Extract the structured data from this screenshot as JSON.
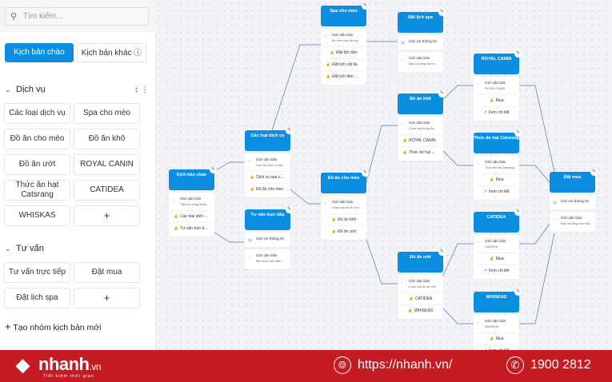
{
  "sidebar": {
    "search_placeholder": "Tìm kiếm...",
    "tabs": {
      "active": "Kịch bản chào",
      "other": "Kịch bản khác"
    },
    "groups": [
      {
        "title": "Dịch vụ",
        "items": [
          "Các loại dịch vụ",
          "Spa cho mèo",
          "Đồ ăn cho mèo",
          "Đồ ăn khô",
          "Đồ ăn ướt",
          "ROYAL CANIN",
          "Thức ăn hạt Catsrang",
          "CATIDEA",
          "WHISKAS",
          "+"
        ]
      },
      {
        "title": "Tư vấn",
        "items": [
          "Tư vấn trực tiếp",
          "Đặt mua",
          "Đặt lịch spa",
          "+"
        ]
      }
    ],
    "new_group": "Tạo nhóm kịch bản mới"
  },
  "nodes": [
    {
      "id": "kbc",
      "title": "Kịch bản chào",
      "blocks": [
        {
          "type": "msg",
          "text": "Gửi văn bản",
          "sub": "Tiếp thu cùng Hạnh..."
        },
        {
          "type": "btn",
          "text": "Các loại dịch ..."
        },
        {
          "type": "btn",
          "text": "Tư vấn trực ti..."
        }
      ]
    },
    {
      "id": "cldv",
      "title": "Các loại dịch vụ",
      "blocks": [
        {
          "type": "msg",
          "text": "Gửi văn bản",
          "sub": "Các loại dịch vụ mà..."
        },
        {
          "type": "btn",
          "text": "Dịch vụ spa c..."
        },
        {
          "type": "btn",
          "text": "Đồ ăn cho mèo"
        }
      ]
    },
    {
      "id": "tvtt",
      "title": "Tư vấn trực tiếp",
      "cards": [
        {
          "type": "info",
          "text": "Gửi xin thông tin"
        },
        {
          "type": "msg",
          "text": "Gửi văn bản",
          "sub": "Bên mình đã nhận..."
        }
      ]
    },
    {
      "id": "spa",
      "title": "Spa cho mèo",
      "blocks": [
        {
          "type": "msg",
          "text": "Gửi văn bản",
          "sub": "Bé mèo của các bạ..."
        },
        {
          "type": "btn",
          "text": "Đặt lịch tắm",
          "center": true
        },
        {
          "type": "btn",
          "text": "Đặt lịch cắt tỉa"
        },
        {
          "type": "btn",
          "text": "Đặt lịch tắm ..."
        }
      ]
    },
    {
      "id": "dls",
      "title": "Đặt lịch spa",
      "cards": [
        {
          "type": "info",
          "text": "Gửi xin thông tin"
        },
        {
          "type": "msg",
          "text": "Gửi văn bản",
          "sub": "Bạn vui lòng chờ m..."
        }
      ]
    },
    {
      "id": "dacm",
      "title": "Đồ ăn cho mèo",
      "blocks": [
        {
          "type": "msg",
          "text": "Gửi văn bản",
          "sub": "Chọn loại đồ ăn cho..."
        },
        {
          "type": "btn",
          "text": "Đồ ăn khô",
          "center": true
        },
        {
          "type": "btn",
          "text": "Đồ ăn ướt",
          "center": true
        }
      ]
    },
    {
      "id": "dak",
      "title": "Đồ ăn khô",
      "blocks": [
        {
          "type": "msg",
          "text": "Gửi văn bản",
          "sub": "Chọn loại trong đồ..."
        },
        {
          "type": "btn",
          "text": "ROYAL CANIN"
        },
        {
          "type": "btn",
          "text": "Thức ăn hạt ..."
        }
      ]
    },
    {
      "id": "dau",
      "title": "Đồ ăn ướt",
      "blocks": [
        {
          "type": "msg",
          "text": "Gửi văn bản",
          "sub": "Chọn loại đồ ăn ướt."
        },
        {
          "type": "btn",
          "text": "CATIDEA",
          "center": true
        },
        {
          "type": "btn",
          "text": "WHISKAS",
          "center": true
        }
      ]
    },
    {
      "id": "rc",
      "title": "ROYAL CANIN",
      "blocks": [
        {
          "type": "msg",
          "text": "Gửi văn bản",
          "sub": "ROYAL CANIN"
        },
        {
          "type": "btn",
          "text": "Mua",
          "center": true
        },
        {
          "type": "link",
          "text": "Xem chi tiết",
          "center": true
        }
      ]
    },
    {
      "id": "tah",
      "title": "Thức ăn hạt Catsrang",
      "blocks": [
        {
          "type": "msg",
          "text": "Gửi văn bản",
          "sub": "Thức ăn hạt Catsrang"
        },
        {
          "type": "btn",
          "text": "Mua",
          "center": true
        },
        {
          "type": "link",
          "text": "Xem chi tiết",
          "center": true
        }
      ]
    },
    {
      "id": "cat",
      "title": "CATIDEA",
      "blocks": [
        {
          "type": "msg",
          "text": "Gửi văn bản",
          "sub": "CATIDEA"
        },
        {
          "type": "btn",
          "text": "Mua",
          "center": true
        },
        {
          "type": "link",
          "text": "Xem chi tiết",
          "center": true
        }
      ]
    },
    {
      "id": "wh",
      "title": "WHISKAS",
      "blocks": [
        {
          "type": "msg",
          "text": "Gửi văn bản",
          "sub": "WHISKAS"
        },
        {
          "type": "btn",
          "text": "Mua",
          "center": true
        },
        {
          "type": "link",
          "text": "Xem chi tiết",
          "center": true
        }
      ]
    },
    {
      "id": "dm",
      "title": "Đặt mua",
      "cards": [
        {
          "type": "info",
          "text": "Gửi xin thông tin"
        },
        {
          "type": "msg",
          "text": "Gửi văn bản",
          "sub": "Bạn vui lòng chờ một..."
        }
      ]
    }
  ],
  "banner": {
    "brand": "nhanh",
    "brand_tld": ".vn",
    "tagline": "Tiết kiệm thời gian",
    "website": "https://nhanh.vn/",
    "phone": "1900 2812"
  },
  "colors": {
    "accent": "#0b8ee0",
    "banner": "#c41c22",
    "canvas": "#f1f3f6"
  }
}
